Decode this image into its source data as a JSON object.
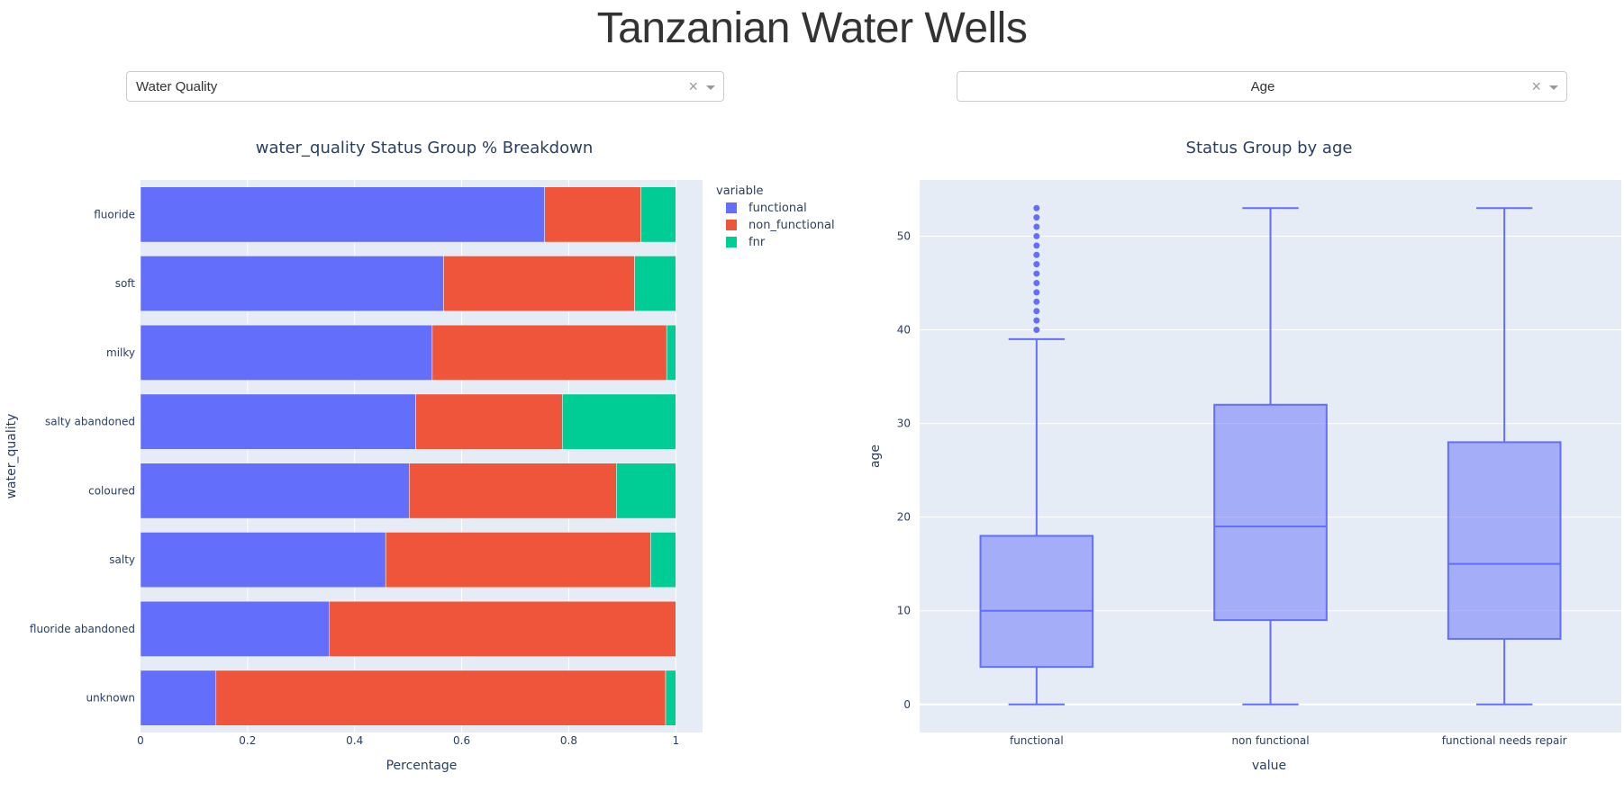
{
  "page": {
    "title": "Tanzanian Water Wells"
  },
  "dropdowns": {
    "left": {
      "value": "Water Quality",
      "clear_glyph": "×"
    },
    "right": {
      "value": "Age",
      "clear_glyph": "×"
    }
  },
  "colors": {
    "functional": "#636efa",
    "non_functional": "#ef553b",
    "fnr": "#00cc96",
    "plot_bg": "#e5ecf6",
    "text": "#2a3f5f"
  },
  "chart_data": [
    {
      "type": "bar",
      "orientation": "horizontal",
      "stacked": true,
      "title": "water_quality Status Group % Breakdown",
      "xlabel": "Percentage",
      "ylabel": "water_quality",
      "xlim": [
        0,
        1.05
      ],
      "xticks": [
        "0",
        "0.2",
        "0.4",
        "0.6",
        "0.8",
        "1"
      ],
      "categories": [
        "fluoride",
        "soft",
        "milky",
        "salty abandoned",
        "coloured",
        "salty",
        "fluoride abandoned",
        "unknown"
      ],
      "legend_title": "variable",
      "series": [
        {
          "name": "functional",
          "values": [
            0.755,
            0.566,
            0.545,
            0.514,
            0.502,
            0.458,
            0.353,
            0.141
          ]
        },
        {
          "name": "non_functional",
          "values": [
            0.18,
            0.357,
            0.438,
            0.274,
            0.387,
            0.495,
            0.647,
            0.84
          ]
        },
        {
          "name": "fnr",
          "values": [
            0.065,
            0.077,
            0.017,
            0.212,
            0.111,
            0.047,
            0.0,
            0.019
          ]
        }
      ]
    },
    {
      "type": "box",
      "title": "Status Group by age",
      "xlabel": "value",
      "ylabel": "age",
      "ylim": [
        -3,
        56
      ],
      "yticks": [
        "0",
        "10",
        "20",
        "30",
        "40",
        "50"
      ],
      "categories": [
        "functional",
        "non functional",
        "functional needs repair"
      ],
      "boxes": [
        {
          "name": "functional",
          "min": 0,
          "q1": 4,
          "median": 10,
          "q3": 18,
          "max": 39,
          "outliers": [
            40,
            41,
            42,
            43,
            44,
            45,
            46,
            47,
            48,
            49,
            50,
            51,
            52,
            53
          ]
        },
        {
          "name": "non functional",
          "min": 0,
          "q1": 9,
          "median": 19,
          "q3": 32,
          "max": 53,
          "outliers": []
        },
        {
          "name": "functional needs repair",
          "min": 0,
          "q1": 7,
          "median": 15,
          "q3": 28,
          "max": 53,
          "outliers": []
        }
      ]
    }
  ]
}
